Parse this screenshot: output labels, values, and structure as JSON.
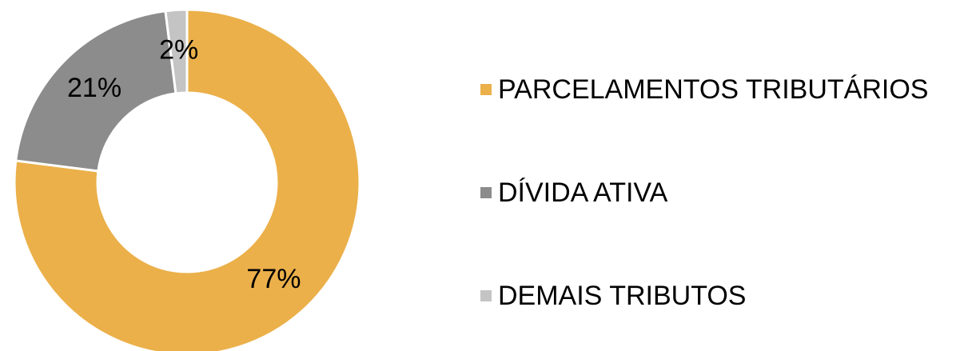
{
  "chart_data": {
    "type": "donut",
    "categories": [
      "PARCELAMENTOS TRIBUTÁRIOS",
      "DÍVIDA ATIVA",
      "DEMAIS TRIBUTOS"
    ],
    "values": [
      77,
      21,
      2
    ],
    "value_labels": [
      "77%",
      "21%",
      "2%"
    ],
    "colors": [
      "#ebb04a",
      "#8c8c8c",
      "#c4c4c4"
    ],
    "legend": "right"
  }
}
